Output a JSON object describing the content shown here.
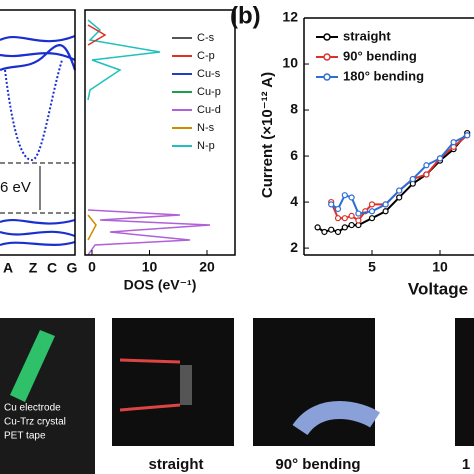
{
  "band_panel": {
    "kpoints": [
      "A",
      "Z",
      "C",
      "G"
    ],
    "gap_label": "6 eV"
  },
  "dos_panel": {
    "xticks": [
      0,
      10,
      20
    ],
    "xlabel": "DOS (eV⁻¹)",
    "legend": [
      {
        "name": "C-s",
        "color": "#555555"
      },
      {
        "name": "C-p",
        "color": "#e0302a"
      },
      {
        "name": "Cu-s",
        "color": "#1f3fbf"
      },
      {
        "name": "Cu-p",
        "color": "#1e9e4a"
      },
      {
        "name": "Cu-d",
        "color": "#b060d8"
      },
      {
        "name": "N-s",
        "color": "#d08a00"
      },
      {
        "name": "N-p",
        "color": "#20c0c0"
      }
    ]
  },
  "panel_label": "(b)",
  "chart_data": {
    "type": "line",
    "ylabel": "Current (×10⁻¹² A)",
    "xlabel": "Voltage",
    "xlim": [
      0,
      12.5
    ],
    "ylim": [
      1.7,
      12
    ],
    "xticks": [
      5,
      10
    ],
    "yticks": [
      2,
      4,
      6,
      8,
      10,
      12
    ],
    "series": [
      {
        "name": "straight",
        "color": "#000000",
        "x": [
          1,
          1.5,
          2,
          2.5,
          3,
          3.5,
          4,
          5,
          6,
          7,
          8,
          9,
          10,
          11,
          12
        ],
        "values": [
          2.9,
          2.7,
          2.8,
          2.7,
          2.9,
          3.0,
          3.0,
          3.3,
          3.6,
          4.2,
          4.8,
          5.2,
          5.8,
          6.3,
          7.0
        ]
      },
      {
        "name": "90° bending",
        "color": "#e0302a",
        "x": [
          2,
          2.5,
          3,
          3.5,
          4,
          4.5,
          5,
          6,
          7,
          8,
          9,
          10,
          11,
          12
        ],
        "values": [
          4.0,
          3.3,
          3.3,
          3.4,
          3.2,
          3.6,
          3.9,
          3.9,
          4.5,
          5.0,
          5.2,
          5.9,
          6.4,
          6.9
        ]
      },
      {
        "name": "180° bending",
        "color": "#2a6fd6",
        "x": [
          2,
          2.5,
          3,
          3.5,
          4,
          5,
          6,
          7,
          8,
          9,
          10,
          11,
          12
        ],
        "values": [
          3.9,
          3.7,
          4.3,
          4.2,
          3.5,
          3.6,
          3.9,
          4.5,
          5.0,
          5.6,
          5.9,
          6.6,
          6.9
        ]
      }
    ]
  },
  "photos": {
    "labels": [
      "Cu electrode",
      "Cu-Trz crystal",
      "PET tape"
    ],
    "captions": [
      "straight",
      "90° bending",
      "1"
    ]
  }
}
